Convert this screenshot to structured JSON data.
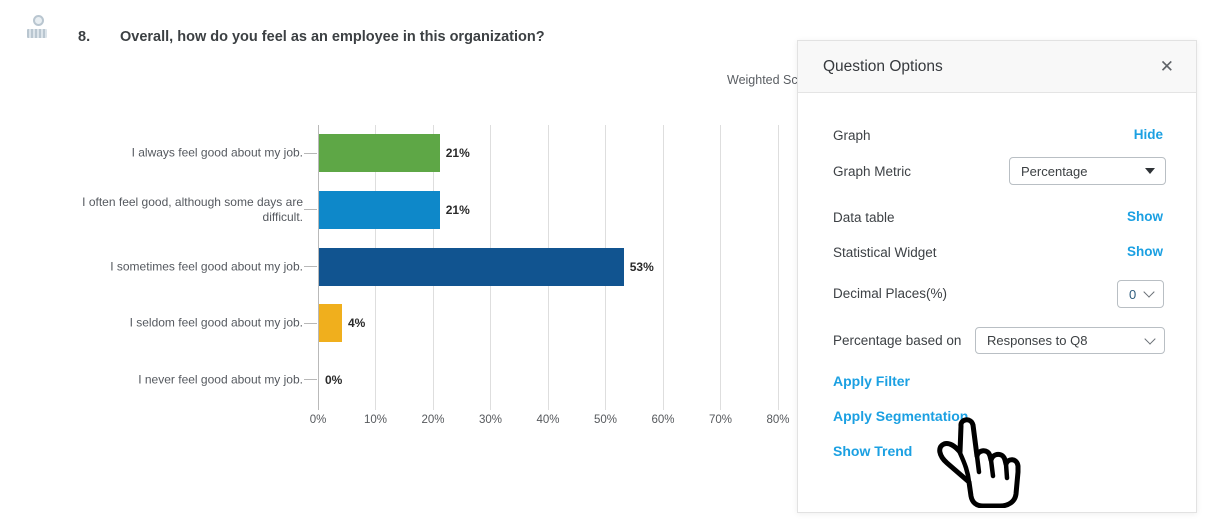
{
  "question": {
    "number": "8.",
    "text": "Overall, how do you feel as an employee in this organization?",
    "icon": "rating-scale-icon"
  },
  "chart_data": {
    "type": "bar",
    "orientation": "horizontal",
    "caption_partial": "Weighted Sc",
    "categories": [
      "I always feel good about my job.",
      "I often feel good, although some days are difficult.",
      "I sometimes feel good about my job.",
      "I seldom feel good about my job.",
      "I never feel good about my job."
    ],
    "values": [
      21,
      21,
      53,
      4,
      0
    ],
    "value_labels": [
      "21%",
      "21%",
      "53%",
      "4%",
      "0%"
    ],
    "bar_colors": [
      "#5ea746",
      "#0e88c9",
      "#115490",
      "#f0af1d",
      null
    ],
    "x_ticks": [
      0,
      10,
      20,
      30,
      40,
      50,
      60,
      70,
      80
    ],
    "x_tick_labels": [
      "0%",
      "10%",
      "20%",
      "30%",
      "40%",
      "50%",
      "60%",
      "70%",
      "80%"
    ],
    "xlim": [
      0,
      83
    ],
    "grid": true,
    "legend": false,
    "xlabel": "",
    "ylabel": ""
  },
  "panel": {
    "title": "Question Options",
    "close_icon": "✕",
    "graph": {
      "label": "Graph",
      "action": "Hide"
    },
    "graph_metric": {
      "label": "Graph Metric",
      "value": "Percentage"
    },
    "data_table": {
      "label": "Data table",
      "action": "Show"
    },
    "statistical_widget": {
      "label": "Statistical Widget",
      "action": "Show"
    },
    "decimal_places": {
      "label": "Decimal Places(%)",
      "value": "0"
    },
    "percentage_based_on": {
      "label": "Percentage based on",
      "value": "Responses to Q8"
    },
    "links": {
      "apply_filter": "Apply Filter",
      "apply_segmentation": "Apply Segmentation",
      "show_trend": "Show Trend"
    },
    "accent_color": "#1ba0e2"
  },
  "cursor": {
    "shape": "pointing-hand",
    "pointing_at": "Apply Segmentation"
  }
}
